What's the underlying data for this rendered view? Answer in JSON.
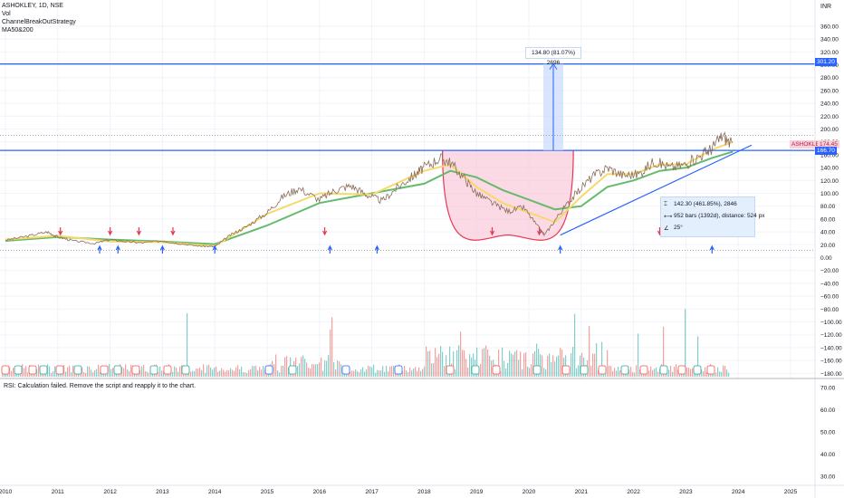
{
  "legend": {
    "symbol": "ASHOKLEY, 1D, NSE",
    "items": [
      "Vol",
      "ChannelBreakOutStrategy",
      "MA50&200"
    ]
  },
  "currency": "INR",
  "rsi_message": "RSI: Calculation failed. Remove the script and reapply it to the chart.",
  "measure_top_label": "134.80 (81.07%) 2696",
  "measure_box": {
    "line1": "142.30 (461.85%), 2846",
    "line2": "952 bars (1392d), distance: 524 px",
    "line3": "25°"
  },
  "tags": {
    "ticker": "ASHOKLEY",
    "price": "174.45",
    "level_upper": "301.20",
    "level_lower": "166.70"
  },
  "colors": {
    "line_blue": "#2962ff",
    "cup_fill": "#f8bbd0",
    "cup_line": "#e53950",
    "ma50": "#f7d96b",
    "ma200": "#66bb6a",
    "up": "#26a69a",
    "down": "#ef5350",
    "measure_fill": "#c7dafb"
  },
  "chart_data": {
    "type": "line",
    "title": "ASHOKLEY, 1D, NSE",
    "xlabel": "",
    "ylabel": "",
    "x_ticks": [
      "2010",
      "2011",
      "2012",
      "2013",
      "2014",
      "2015",
      "2016",
      "2017",
      "2018",
      "2019",
      "2020",
      "2021",
      "2022",
      "2023",
      "2024",
      "2025"
    ],
    "y_ticks_main": [
      "360.00",
      "340.00",
      "320.00",
      "300.00",
      "280.00",
      "260.00",
      "240.00",
      "220.00",
      "200.00",
      "180.00",
      "160.00",
      "140.00",
      "120.00",
      "100.00",
      "80.00",
      "60.00",
      "40.00",
      "20.00",
      "0.00",
      "−20.00",
      "−40.00",
      "−60.00",
      "−80.00",
      "−100.00",
      "−120.00",
      "−140.00",
      "−160.00",
      "−180.00"
    ],
    "y_ticks_rsi": [
      "70.00",
      "60.00",
      "50.00",
      "40.00",
      "30.00"
    ],
    "ylim": [
      -180,
      370
    ],
    "series": [
      {
        "name": "ASHOKLEY",
        "x": [
          2010.0,
          2010.4,
          2010.8,
          2011.0,
          2011.3,
          2011.7,
          2012.0,
          2012.3,
          2012.6,
          2013.0,
          2013.3,
          2013.7,
          2014.0,
          2014.3,
          2014.6,
          2015.0,
          2015.3,
          2015.6,
          2016.0,
          2016.3,
          2016.6,
          2016.9,
          2017.2,
          2017.5,
          2017.8,
          2018.0,
          2018.3,
          2018.5,
          2018.8,
          2019.0,
          2019.3,
          2019.6,
          2019.9,
          2020.2,
          2020.3,
          2020.6,
          2020.9,
          2021.2,
          2021.5,
          2021.8,
          2022.1,
          2022.4,
          2022.7,
          2023.0,
          2023.3,
          2023.5,
          2023.7,
          2023.9
        ],
        "values": [
          27,
          33,
          40,
          32,
          26,
          22,
          28,
          25,
          23,
          26,
          22,
          18,
          17,
          35,
          48,
          70,
          95,
          108,
          90,
          105,
          112,
          98,
          88,
          110,
          128,
          140,
          155,
          148,
          120,
          100,
          85,
          72,
          78,
          45,
          35,
          70,
          100,
          125,
          140,
          128,
          130,
          150,
          140,
          145,
          160,
          170,
          190,
          174
        ]
      },
      {
        "name": "MA50",
        "x": [
          2010.0,
          2011.0,
          2012.0,
          2013.0,
          2014.0,
          2015.0,
          2016.0,
          2017.0,
          2018.0,
          2018.5,
          2019.0,
          2019.5,
          2020.0,
          2020.5,
          2021.0,
          2021.5,
          2022.0,
          2022.5,
          2023.0,
          2023.5,
          2023.9
        ],
        "values": [
          28,
          34,
          25,
          24,
          18,
          68,
          100,
          98,
          135,
          145,
          110,
          85,
          70,
          55,
          95,
          130,
          130,
          145,
          145,
          168,
          180
        ]
      },
      {
        "name": "MA200",
        "x": [
          2010.0,
          2011.0,
          2012.0,
          2013.0,
          2014.0,
          2015.0,
          2016.0,
          2017.0,
          2018.0,
          2018.5,
          2019.0,
          2019.5,
          2020.0,
          2020.5,
          2021.0,
          2021.5,
          2022.0,
          2022.5,
          2023.0,
          2023.5,
          2023.9
        ],
        "values": [
          26,
          32,
          28,
          25,
          21,
          50,
          85,
          100,
          115,
          135,
          125,
          105,
          90,
          75,
          80,
          110,
          120,
          135,
          140,
          155,
          165
        ]
      }
    ],
    "levels": [
      301.2,
      166.7
    ],
    "annotations": [
      "134.80 (81.07%) 2696",
      "142.30 (461.85%), 2846"
    ]
  }
}
